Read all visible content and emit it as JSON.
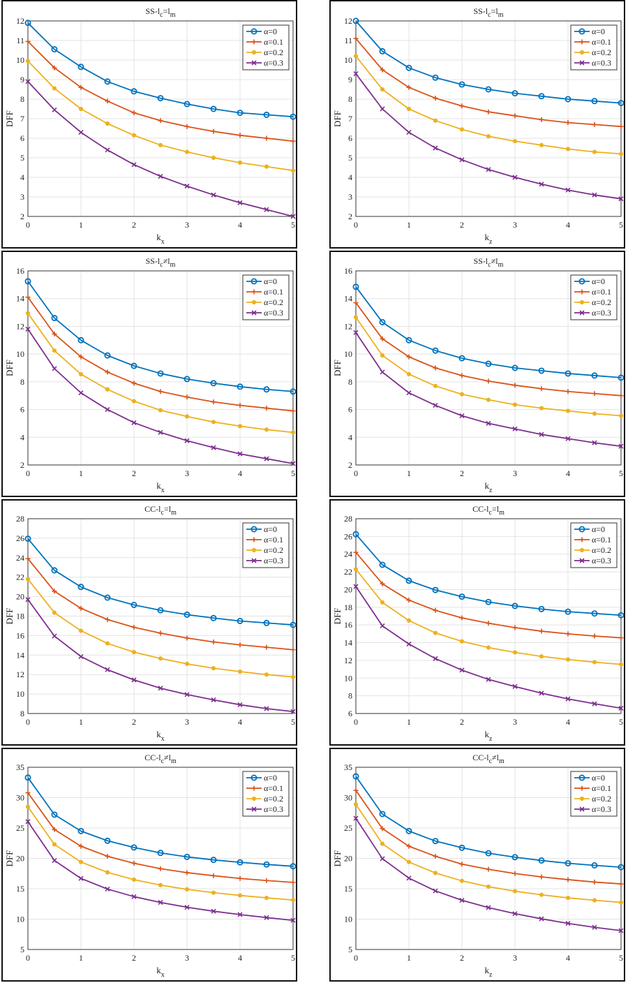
{
  "chart_data": [
    {
      "type": "line",
      "title_main": "SS-l",
      "title_sub1": "c",
      "title_rel": "=l",
      "title_sub2": "m",
      "xlabel_main": "k",
      "xlabel_sub": "x",
      "ylabel": "DFF",
      "x": [
        0,
        0.5,
        1,
        1.5,
        2,
        2.5,
        3,
        3.5,
        4,
        4.5,
        5
      ],
      "xlim": [
        0,
        5
      ],
      "ylim": [
        2,
        12
      ],
      "xticks": [
        0,
        1,
        2,
        3,
        4,
        5
      ],
      "yticks": [
        2,
        3,
        4,
        5,
        6,
        7,
        8,
        9,
        10,
        11,
        12
      ],
      "grid": true,
      "legend_position": "top-right",
      "series": [
        {
          "name": "α=0",
          "color": "#0072BD",
          "marker": "circle",
          "values": [
            11.9,
            10.55,
            9.65,
            8.9,
            8.4,
            8.05,
            7.75,
            7.5,
            7.3,
            7.2,
            7.1
          ]
        },
        {
          "name": "α=0.1",
          "color": "#D95319",
          "marker": "plus",
          "values": [
            10.95,
            9.6,
            8.6,
            7.9,
            7.3,
            6.9,
            6.6,
            6.35,
            6.15,
            6.0,
            5.85
          ]
        },
        {
          "name": "α=0.2",
          "color": "#EDB120",
          "marker": "dot",
          "values": [
            9.95,
            8.55,
            7.5,
            6.75,
            6.15,
            5.65,
            5.3,
            5.0,
            4.75,
            4.55,
            4.35
          ]
        },
        {
          "name": "α=0.3",
          "color": "#7E2F8E",
          "marker": "x",
          "values": [
            8.9,
            7.45,
            6.3,
            5.4,
            4.65,
            4.05,
            3.55,
            3.1,
            2.7,
            2.35,
            2.0
          ]
        }
      ]
    },
    {
      "type": "line",
      "title_main": "SS-l",
      "title_sub1": "c",
      "title_rel": "=l",
      "title_sub2": "m",
      "xlabel_main": "k",
      "xlabel_sub": "z",
      "ylabel": "DFF",
      "x": [
        0,
        0.5,
        1,
        1.5,
        2,
        2.5,
        3,
        3.5,
        4,
        4.5,
        5
      ],
      "xlim": [
        0,
        5
      ],
      "ylim": [
        2,
        12
      ],
      "xticks": [
        0,
        1,
        2,
        3,
        4,
        5
      ],
      "yticks": [
        2,
        3,
        4,
        5,
        6,
        7,
        8,
        9,
        10,
        11,
        12
      ],
      "grid": true,
      "legend_position": "top-right",
      "series": [
        {
          "name": "α=0",
          "color": "#0072BD",
          "marker": "circle",
          "values": [
            12.0,
            10.45,
            9.6,
            9.1,
            8.75,
            8.5,
            8.3,
            8.15,
            8.0,
            7.9,
            7.8
          ]
        },
        {
          "name": "α=0.1",
          "color": "#D95319",
          "marker": "plus",
          "values": [
            11.1,
            9.5,
            8.6,
            8.05,
            7.65,
            7.35,
            7.15,
            6.95,
            6.8,
            6.7,
            6.6
          ]
        },
        {
          "name": "α=0.2",
          "color": "#EDB120",
          "marker": "dot",
          "values": [
            10.2,
            8.5,
            7.5,
            6.9,
            6.45,
            6.1,
            5.85,
            5.65,
            5.45,
            5.3,
            5.2
          ]
        },
        {
          "name": "α=0.3",
          "color": "#7E2F8E",
          "marker": "x",
          "values": [
            9.3,
            7.5,
            6.3,
            5.5,
            4.9,
            4.4,
            4.0,
            3.65,
            3.35,
            3.1,
            2.9
          ]
        }
      ]
    },
    {
      "type": "line",
      "title_main": "SS-l",
      "title_sub1": "c",
      "title_rel": "≠l",
      "title_sub2": "m",
      "xlabel_main": "k",
      "xlabel_sub": "x",
      "ylabel": "DFF",
      "x": [
        0,
        0.5,
        1,
        1.5,
        2,
        2.5,
        3,
        3.5,
        4,
        4.5,
        5
      ],
      "xlim": [
        0,
        5
      ],
      "ylim": [
        2,
        16
      ],
      "xticks": [
        0,
        1,
        2,
        3,
        4,
        5
      ],
      "yticks": [
        2,
        4,
        6,
        8,
        10,
        12,
        14,
        16
      ],
      "grid": true,
      "legend_position": "top-right",
      "series": [
        {
          "name": "α=0",
          "color": "#0072BD",
          "marker": "circle",
          "values": [
            15.25,
            12.6,
            11.0,
            9.9,
            9.15,
            8.6,
            8.2,
            7.9,
            7.65,
            7.45,
            7.3
          ]
        },
        {
          "name": "α=0.1",
          "color": "#D95319",
          "marker": "plus",
          "values": [
            14.1,
            11.45,
            9.8,
            8.7,
            7.9,
            7.3,
            6.9,
            6.55,
            6.3,
            6.1,
            5.9
          ]
        },
        {
          "name": "α=0.2",
          "color": "#EDB120",
          "marker": "dot",
          "values": [
            12.95,
            10.25,
            8.55,
            7.45,
            6.6,
            5.95,
            5.5,
            5.1,
            4.8,
            4.55,
            4.35
          ]
        },
        {
          "name": "α=0.3",
          "color": "#7E2F8E",
          "marker": "x",
          "values": [
            11.8,
            8.95,
            7.2,
            6.0,
            5.05,
            4.35,
            3.75,
            3.25,
            2.8,
            2.45,
            2.1
          ]
        }
      ]
    },
    {
      "type": "line",
      "title_main": "SS-l",
      "title_sub1": "c",
      "title_rel": "≠l",
      "title_sub2": "m",
      "xlabel_main": "k",
      "xlabel_sub": "z",
      "ylabel": "DFF",
      "x": [
        0,
        0.5,
        1,
        1.5,
        2,
        2.5,
        3,
        3.5,
        4,
        4.5,
        5
      ],
      "xlim": [
        0,
        5
      ],
      "ylim": [
        2,
        16
      ],
      "xticks": [
        0,
        1,
        2,
        3,
        4,
        5
      ],
      "yticks": [
        2,
        4,
        6,
        8,
        10,
        12,
        14,
        16
      ],
      "grid": true,
      "legend_position": "top-right",
      "series": [
        {
          "name": "α=0",
          "color": "#0072BD",
          "marker": "circle",
          "values": [
            14.85,
            12.3,
            11.0,
            10.25,
            9.7,
            9.3,
            9.0,
            8.8,
            8.6,
            8.45,
            8.3
          ]
        },
        {
          "name": "α=0.1",
          "color": "#D95319",
          "marker": "plus",
          "values": [
            13.7,
            11.1,
            9.8,
            9.0,
            8.45,
            8.05,
            7.75,
            7.5,
            7.3,
            7.15,
            7.0
          ]
        },
        {
          "name": "α=0.2",
          "color": "#EDB120",
          "marker": "dot",
          "values": [
            12.65,
            9.9,
            8.55,
            7.7,
            7.1,
            6.7,
            6.35,
            6.1,
            5.9,
            5.7,
            5.55
          ]
        },
        {
          "name": "α=0.3",
          "color": "#7E2F8E",
          "marker": "x",
          "values": [
            11.55,
            8.7,
            7.2,
            6.3,
            5.55,
            5.0,
            4.6,
            4.2,
            3.9,
            3.6,
            3.35
          ]
        }
      ]
    },
    {
      "type": "line",
      "title_main": "CC-l",
      "title_sub1": "c",
      "title_rel": "=l",
      "title_sub2": "m",
      "xlabel_main": "k",
      "xlabel_sub": "x",
      "ylabel": "DFF",
      "x": [
        0,
        0.5,
        1,
        1.5,
        2,
        2.5,
        3,
        3.5,
        4,
        4.5,
        5
      ],
      "xlim": [
        0,
        5
      ],
      "ylim": [
        8,
        28
      ],
      "xticks": [
        0,
        1,
        2,
        3,
        4,
        5
      ],
      "yticks": [
        8,
        10,
        12,
        14,
        16,
        18,
        20,
        22,
        24,
        26,
        28
      ],
      "grid": true,
      "legend_position": "top-right",
      "series": [
        {
          "name": "α=0",
          "color": "#0072BD",
          "marker": "circle",
          "values": [
            25.95,
            22.7,
            21.0,
            19.9,
            19.15,
            18.6,
            18.15,
            17.8,
            17.5,
            17.3,
            17.1
          ]
        },
        {
          "name": "α=0.1",
          "color": "#D95319",
          "marker": "plus",
          "values": [
            23.9,
            20.55,
            18.8,
            17.65,
            16.85,
            16.25,
            15.75,
            15.35,
            15.05,
            14.8,
            14.55
          ]
        },
        {
          "name": "α=0.2",
          "color": "#EDB120",
          "marker": "dot",
          "values": [
            21.8,
            18.35,
            16.5,
            15.2,
            14.3,
            13.65,
            13.1,
            12.65,
            12.3,
            12.0,
            11.75
          ]
        },
        {
          "name": "α=0.3",
          "color": "#7E2F8E",
          "marker": "x",
          "values": [
            19.7,
            15.95,
            13.85,
            12.5,
            11.45,
            10.6,
            9.95,
            9.4,
            8.9,
            8.5,
            8.2
          ]
        }
      ]
    },
    {
      "type": "line",
      "title_main": "CC-l",
      "title_sub1": "c",
      "title_rel": "=l",
      "title_sub2": "m",
      "xlabel_main": "k",
      "xlabel_sub": "z",
      "ylabel": "DFF",
      "x": [
        0,
        0.5,
        1,
        1.5,
        2,
        2.5,
        3,
        3.5,
        4,
        4.5,
        5
      ],
      "xlim": [
        0,
        5
      ],
      "ylim": [
        6,
        28
      ],
      "xticks": [
        0,
        1,
        2,
        3,
        4,
        5
      ],
      "yticks": [
        6,
        8,
        10,
        12,
        14,
        16,
        18,
        20,
        22,
        24,
        26,
        28
      ],
      "grid": true,
      "legend_position": "top-right",
      "series": [
        {
          "name": "α=0",
          "color": "#0072BD",
          "marker": "circle",
          "values": [
            26.25,
            22.8,
            21.0,
            19.95,
            19.2,
            18.6,
            18.15,
            17.8,
            17.5,
            17.3,
            17.1
          ]
        },
        {
          "name": "α=0.1",
          "color": "#D95319",
          "marker": "plus",
          "values": [
            24.2,
            20.65,
            18.8,
            17.65,
            16.8,
            16.2,
            15.7,
            15.3,
            15.0,
            14.75,
            14.55
          ]
        },
        {
          "name": "α=0.2",
          "color": "#EDB120",
          "marker": "dot",
          "values": [
            22.3,
            18.55,
            16.5,
            15.1,
            14.15,
            13.45,
            12.9,
            12.45,
            12.1,
            11.8,
            11.55
          ]
        },
        {
          "name": "α=0.3",
          "color": "#7E2F8E",
          "marker": "x",
          "values": [
            20.35,
            15.9,
            13.85,
            12.2,
            10.9,
            9.85,
            9.05,
            8.3,
            7.65,
            7.1,
            6.6
          ]
        }
      ]
    },
    {
      "type": "line",
      "title_main": "CC-l",
      "title_sub1": "c",
      "title_rel": "≠l",
      "title_sub2": "m",
      "xlabel_main": "k",
      "xlabel_sub": "x",
      "ylabel": "DFF",
      "x": [
        0,
        0.5,
        1,
        1.5,
        2,
        2.5,
        3,
        3.5,
        4,
        4.5,
        5
      ],
      "xlim": [
        0,
        5
      ],
      "ylim": [
        5,
        35
      ],
      "xticks": [
        0,
        1,
        2,
        3,
        4,
        5
      ],
      "yticks": [
        5,
        10,
        15,
        20,
        25,
        30,
        35
      ],
      "grid": true,
      "legend_position": "top-right",
      "series": [
        {
          "name": "α=0",
          "color": "#0072BD",
          "marker": "circle",
          "values": [
            33.3,
            27.2,
            24.5,
            22.9,
            21.8,
            20.9,
            20.25,
            19.75,
            19.35,
            19.0,
            18.7
          ]
        },
        {
          "name": "α=0.1",
          "color": "#D95319",
          "marker": "plus",
          "values": [
            30.8,
            24.75,
            22.0,
            20.35,
            19.2,
            18.3,
            17.65,
            17.15,
            16.7,
            16.35,
            16.05
          ]
        },
        {
          "name": "α=0.2",
          "color": "#EDB120",
          "marker": "dot",
          "values": [
            28.5,
            22.3,
            19.4,
            17.7,
            16.5,
            15.6,
            14.9,
            14.35,
            13.9,
            13.5,
            13.15
          ]
        },
        {
          "name": "α=0.3",
          "color": "#7E2F8E",
          "marker": "x",
          "values": [
            26.05,
            19.65,
            16.7,
            14.95,
            13.7,
            12.75,
            11.95,
            11.3,
            10.75,
            10.25,
            9.8
          ]
        }
      ]
    },
    {
      "type": "line",
      "title_main": "CC-l",
      "title_sub1": "c",
      "title_rel": "≠l",
      "title_sub2": "m",
      "xlabel_main": "k",
      "xlabel_sub": "z",
      "ylabel": "DFF",
      "x": [
        0,
        0.5,
        1,
        1.5,
        2,
        2.5,
        3,
        3.5,
        4,
        4.5,
        5
      ],
      "xlim": [
        0,
        5
      ],
      "ylim": [
        5,
        35
      ],
      "xticks": [
        0,
        1,
        2,
        3,
        4,
        5
      ],
      "yticks": [
        5,
        10,
        15,
        20,
        25,
        30,
        35
      ],
      "grid": true,
      "legend_position": "top-right",
      "series": [
        {
          "name": "α=0",
          "color": "#0072BD",
          "marker": "circle",
          "values": [
            33.5,
            27.3,
            24.5,
            22.85,
            21.75,
            20.85,
            20.2,
            19.65,
            19.2,
            18.85,
            18.55
          ]
        },
        {
          "name": "α=0.1",
          "color": "#D95319",
          "marker": "plus",
          "values": [
            31.2,
            24.9,
            22.0,
            20.35,
            19.05,
            18.2,
            17.5,
            16.95,
            16.5,
            16.1,
            15.8
          ]
        },
        {
          "name": "α=0.2",
          "color": "#EDB120",
          "marker": "dot",
          "values": [
            28.9,
            22.4,
            19.4,
            17.6,
            16.3,
            15.35,
            14.6,
            14.0,
            13.5,
            13.1,
            12.75
          ]
        },
        {
          "name": "α=0.3",
          "color": "#7E2F8E",
          "marker": "x",
          "values": [
            26.6,
            19.95,
            16.75,
            14.65,
            13.1,
            11.9,
            10.9,
            10.05,
            9.3,
            8.65,
            8.1
          ]
        }
      ]
    }
  ]
}
